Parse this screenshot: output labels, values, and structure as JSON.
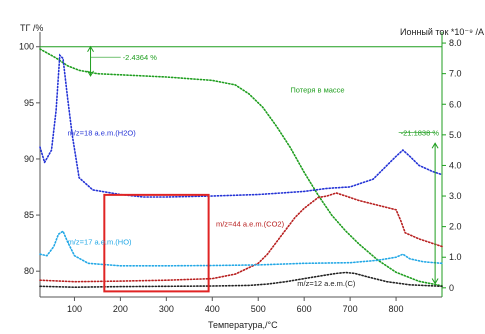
{
  "chart_data": {
    "type": "line",
    "title": "",
    "xlabel": "Температура,/°C",
    "ylabel_left": "ТГ /%",
    "ylabel_right": "Ионный ток *10⁻⁹ /А",
    "xlim": [
      25,
      900
    ],
    "ylim_left": [
      77.7,
      100.6
    ],
    "ylim_right": [
      -0.3,
      8.1
    ],
    "x_ticks": [
      100,
      200,
      300,
      400,
      500,
      600,
      700,
      800
    ],
    "y_ticks_left": [
      80,
      85,
      90,
      95,
      100
    ],
    "y_ticks_right": [
      0,
      1.0,
      2.0,
      3.0,
      4.0,
      5.0,
      6.0,
      7.0,
      8.0
    ],
    "y_ticks_right_labels": [
      "0",
      "1.0",
      "2.0",
      "3.0",
      "4.0",
      "5.0",
      "6.0",
      "7.0",
      "8.0"
    ],
    "series": [
      {
        "name": "Потеря в массе",
        "axis": "left",
        "color": "#1f9e1f",
        "style": "dotted",
        "x": [
          25,
          60,
          85,
          110,
          150,
          200,
          300,
          400,
          450,
          480,
          510,
          540,
          570,
          600,
          630,
          660,
          690,
          720,
          760,
          800,
          850,
          900
        ],
        "y": [
          99.8,
          99.0,
          98.3,
          97.9,
          97.6,
          97.5,
          97.3,
          97.0,
          96.6,
          95.8,
          94.6,
          92.9,
          91.0,
          88.8,
          86.8,
          85.0,
          83.6,
          82.4,
          81.0,
          79.9,
          79.1,
          78.7
        ]
      },
      {
        "name": "m/z=18 a.e.m.(H2O)",
        "axis": "right",
        "color": "#2433d6",
        "style": "dotted",
        "x": [
          25,
          35,
          50,
          60,
          68,
          75,
          85,
          95,
          110,
          140,
          200,
          250,
          300,
          400,
          500,
          550,
          600,
          650,
          700,
          750,
          780,
          800,
          815,
          830,
          850,
          880,
          900
        ],
        "y": [
          4.6,
          4.1,
          4.5,
          5.8,
          7.6,
          7.5,
          6.2,
          5.0,
          3.6,
          3.2,
          3.05,
          2.97,
          2.97,
          3.0,
          3.05,
          3.1,
          3.15,
          3.25,
          3.3,
          3.55,
          4.0,
          4.3,
          4.5,
          4.3,
          4.0,
          3.8,
          3.7
        ]
      },
      {
        "name": "m/z=44 a.e.m.(CO2)",
        "axis": "right",
        "color": "#b82020",
        "style": "dotted",
        "x": [
          25,
          100,
          200,
          300,
          400,
          450,
          500,
          520,
          540,
          560,
          580,
          600,
          630,
          650,
          670,
          690,
          720,
          760,
          800,
          810,
          820,
          850,
          900
        ],
        "y": [
          0.25,
          0.2,
          0.22,
          0.25,
          0.3,
          0.45,
          0.8,
          1.1,
          1.5,
          1.9,
          2.3,
          2.6,
          2.95,
          3.0,
          3.1,
          3.0,
          2.85,
          2.7,
          2.55,
          2.2,
          1.8,
          1.6,
          1.35
        ]
      },
      {
        "name": "m/z=17 a.e.m.(HO)",
        "axis": "right",
        "color": "#23a8e6",
        "style": "dotted",
        "x": [
          25,
          40,
          55,
          65,
          75,
          85,
          100,
          130,
          200,
          300,
          400,
          500,
          600,
          700,
          760,
          800,
          815,
          830,
          860,
          900
        ],
        "y": [
          1.1,
          1.05,
          1.35,
          1.75,
          1.85,
          1.5,
          1.05,
          0.8,
          0.72,
          0.72,
          0.73,
          0.75,
          0.8,
          0.82,
          0.9,
          1.0,
          1.1,
          0.95,
          0.85,
          0.8
        ]
      },
      {
        "name": "m/z=12 a.e.m.(C)",
        "axis": "right",
        "color": "#222222",
        "style": "dotted",
        "x": [
          25,
          100,
          200,
          300,
          400,
          480,
          520,
          560,
          600,
          640,
          670,
          690,
          710,
          740,
          780,
          830,
          900
        ],
        "y": [
          0.05,
          0.02,
          0.04,
          0.05,
          0.06,
          0.08,
          0.12,
          0.2,
          0.3,
          0.4,
          0.47,
          0.5,
          0.47,
          0.35,
          0.2,
          0.1,
          0.05
        ]
      }
    ],
    "reference_line": {
      "axis": "left",
      "y": 100,
      "color": "#1f9e1f"
    },
    "annotations": [
      {
        "text": "-2.4364 %",
        "x": 205,
        "y_left": 98.8,
        "color": "#1f9e1f",
        "arrow_x": 135,
        "arrow_y1_left": 100,
        "arrow_y2_left": 97.4
      },
      {
        "text": "Потеря в массе",
        "x": 570,
        "y_left": 95.9,
        "color": "#1f9e1f"
      },
      {
        "text": "-21.1838 %",
        "x": 810,
        "y_left": 92.1,
        "color": "#1f9e1f",
        "arrow_x": 885,
        "arrow_y1_left": 91.4,
        "arrow_y2_left": 78.9
      },
      {
        "text": "m/z=18 a.e.m.(H2O)",
        "x": 85,
        "y_left": 92.1,
        "color": "#2433d6"
      },
      {
        "text": "m/z=44 a.e.m.(CO2)",
        "x": 408,
        "y_left": 84.0,
        "color": "#b82020"
      },
      {
        "text": "m/z=17 a.e.m.(HO)",
        "x": 85,
        "y_left": 82.4,
        "color": "#23a8e6"
      },
      {
        "text": "m/z=12 a.e.m.(C)",
        "x": 585,
        "y_left": 78.7,
        "color": "#222222"
      }
    ],
    "highlight_box": {
      "x": [
        165,
        392
      ],
      "y_left": [
        78.2,
        86.8
      ],
      "color": "#e02424"
    },
    "grid": false
  }
}
